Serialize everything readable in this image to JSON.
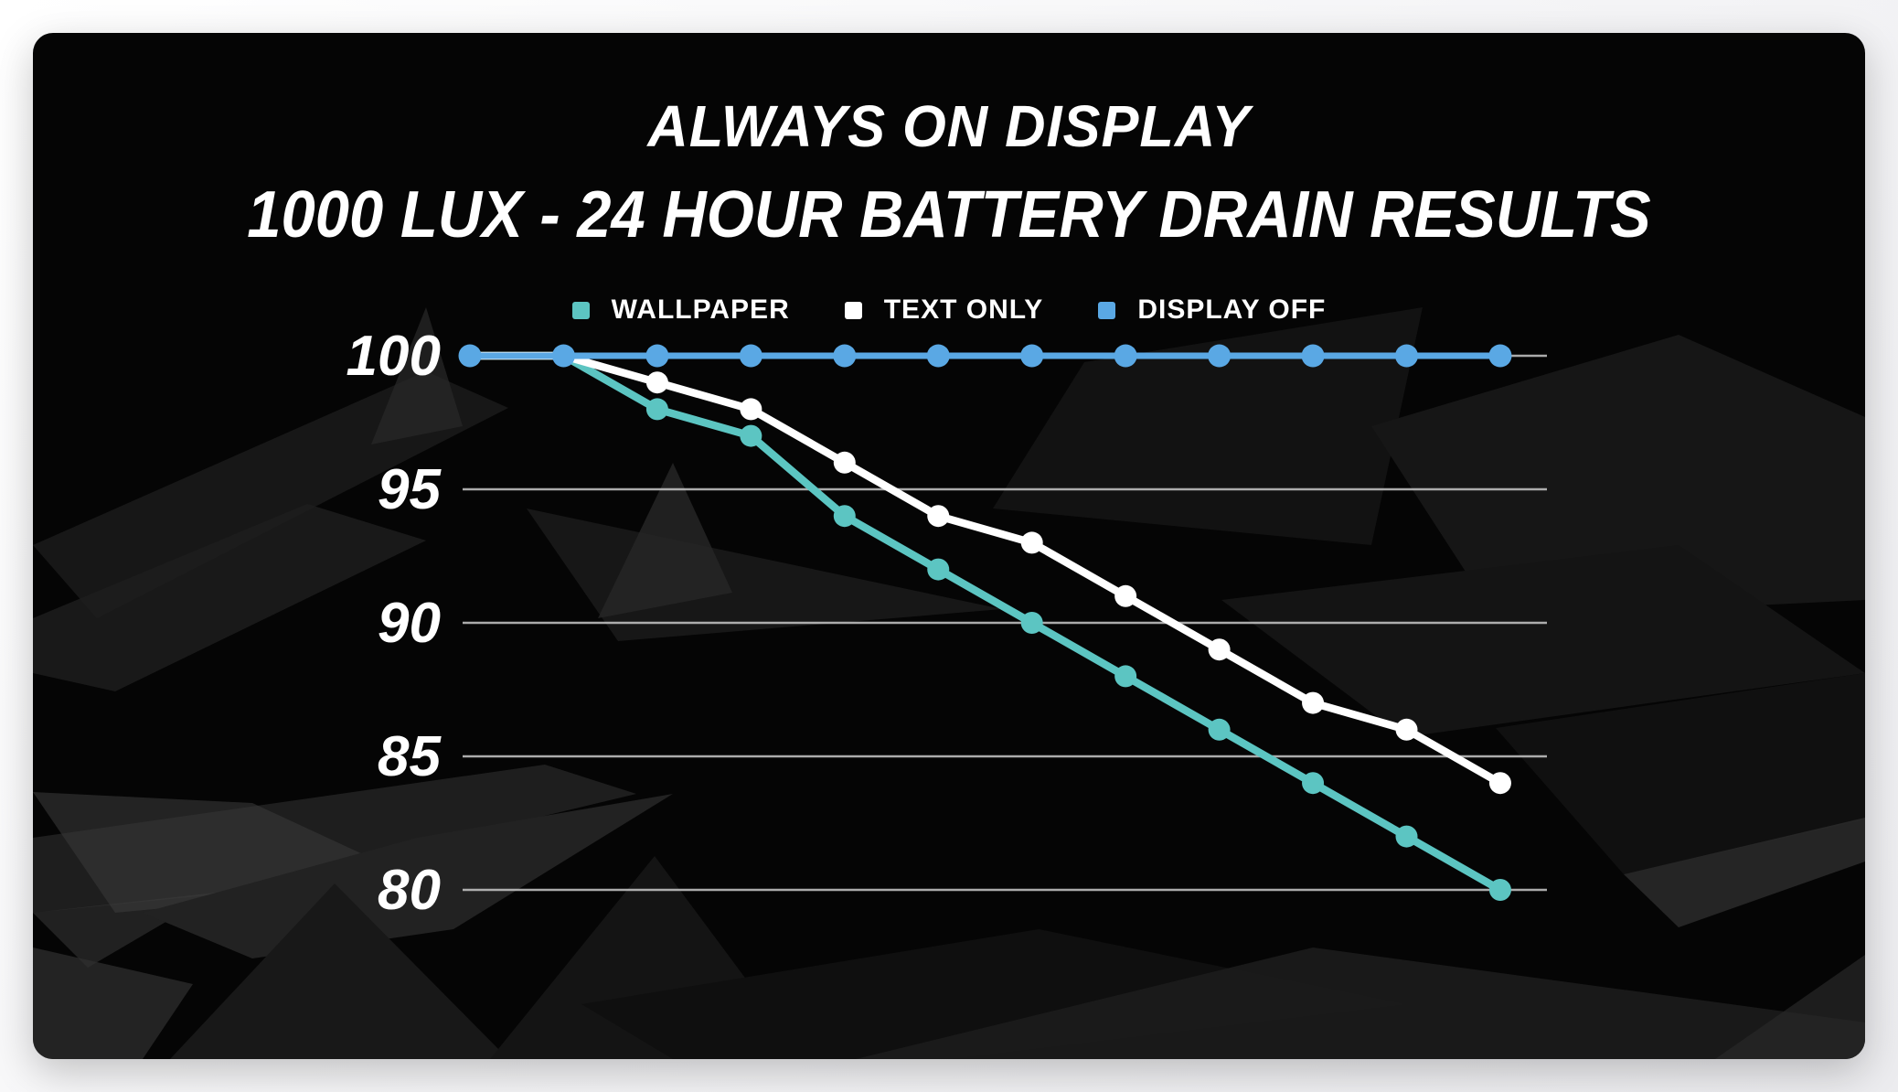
{
  "header": {
    "title_line1": "ALWAYS ON DISPLAY",
    "title_line2": "1000 LUX - 24 HOUR BATTERY DRAIN RESULTS"
  },
  "chart_data": {
    "type": "line",
    "title": "ALWAYS ON DISPLAY",
    "subtitle": "1000 LUX - 24 HOUR BATTERY DRAIN RESULTS",
    "x": [
      1,
      2,
      3,
      4,
      5,
      6,
      7,
      8,
      9,
      10,
      11,
      12
    ],
    "x_tick_labels_visible": false,
    "xlabel": "",
    "ylabel": "",
    "ylim": [
      78,
      101
    ],
    "yticks": [
      100,
      95,
      90,
      85,
      80
    ],
    "grid": true,
    "legend_position": "top",
    "plot_background": "#050505",
    "gridline_color": "#c8c8c8",
    "series": [
      {
        "name": "WALLPAPER",
        "color": "#5cc5c2",
        "values": [
          100,
          100,
          98,
          97,
          94,
          92,
          90,
          88,
          86,
          84,
          82,
          80
        ]
      },
      {
        "name": "TEXT ONLY",
        "color": "#ffffff",
        "values": [
          100,
          100,
          99,
          98,
          96,
          94,
          93,
          91,
          89,
          87,
          86,
          84
        ]
      },
      {
        "name": "DISPLAY OFF",
        "color": "#5aa8e4",
        "values": [
          100,
          100,
          100,
          100,
          100,
          100,
          100,
          100,
          100,
          100,
          100,
          100
        ]
      }
    ]
  }
}
